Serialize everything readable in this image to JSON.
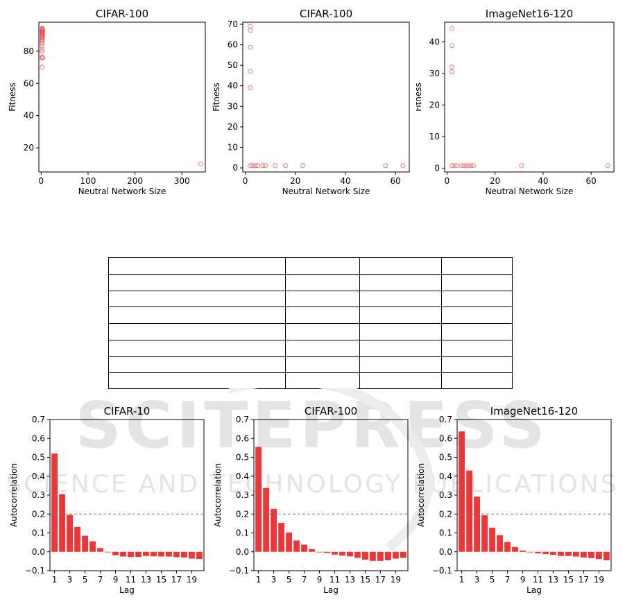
{
  "chart_data": [
    {
      "type": "scatter",
      "title": "CIFAR-100",
      "xlabel": "Neutral Network Size",
      "ylabel": "Fitness",
      "xlim": [
        -5,
        350
      ],
      "ylim": [
        5,
        98
      ],
      "xticks": [
        0,
        100,
        200,
        300
      ],
      "yticks": [
        20,
        40,
        60,
        80
      ],
      "marker_color": "#e8474a",
      "points": [
        [
          2,
          94.2
        ],
        [
          2,
          93.8
        ],
        [
          2,
          93.4
        ],
        [
          3,
          93.1
        ],
        [
          2,
          92.7
        ],
        [
          3,
          92.3
        ],
        [
          2,
          91.9
        ],
        [
          3,
          91.5
        ],
        [
          2,
          91.0
        ],
        [
          3,
          90.6
        ],
        [
          2,
          90.1
        ],
        [
          2,
          89.6
        ],
        [
          3,
          89.0
        ],
        [
          2,
          88.4
        ],
        [
          2,
          87.6
        ],
        [
          2,
          86.8
        ],
        [
          2,
          86.1
        ],
        [
          2,
          84.8
        ],
        [
          2,
          83.1
        ],
        [
          2,
          81.0
        ],
        [
          2,
          79.8
        ],
        [
          2,
          76.4
        ],
        [
          2,
          76.0
        ],
        [
          3,
          75.6
        ],
        [
          2,
          70.1
        ],
        [
          340,
          10.0
        ]
      ]
    },
    {
      "type": "scatter",
      "title": "CIFAR-100",
      "xlabel": "Neutral Network Size",
      "ylabel": "Fitness",
      "xlim": [
        -1,
        65.5
      ],
      "ylim": [
        -2,
        71
      ],
      "xticks": [
        0,
        20,
        40,
        60
      ],
      "yticks": [
        0,
        10,
        20,
        30,
        40,
        50,
        60,
        70
      ],
      "marker_color": "#e8474a",
      "points": [
        [
          2,
          69
        ],
        [
          2,
          67
        ],
        [
          2,
          58.8
        ],
        [
          2,
          47
        ],
        [
          2,
          39
        ],
        [
          2,
          1.1
        ],
        [
          3,
          1.1
        ],
        [
          4,
          1.1
        ],
        [
          5,
          1.1
        ],
        [
          7,
          1.1
        ],
        [
          8,
          1.1
        ],
        [
          12,
          1.1
        ],
        [
          16,
          1.1
        ],
        [
          23,
          1.1
        ],
        [
          56,
          1.1
        ],
        [
          63,
          1.1
        ]
      ]
    },
    {
      "type": "scatter",
      "title": "ImageNet16-120",
      "xlabel": "Neutral Network Size",
      "ylabel": "Fitness",
      "xlim": [
        -1,
        69.5
      ],
      "ylim": [
        -1.2,
        46.2
      ],
      "xticks": [
        0,
        20,
        40,
        60
      ],
      "yticks": [
        0,
        10,
        20,
        30,
        40
      ],
      "marker_color": "#e8474a",
      "points": [
        [
          2,
          44.2
        ],
        [
          2,
          38.8
        ],
        [
          2,
          32
        ],
        [
          2,
          30.5
        ],
        [
          2,
          0.8
        ],
        [
          3,
          0.8
        ],
        [
          4,
          0.8
        ],
        [
          6,
          0.8
        ],
        [
          7,
          0.8
        ],
        [
          8,
          0.8
        ],
        [
          9,
          0.8
        ],
        [
          10,
          0.8
        ],
        [
          11,
          0.8
        ],
        [
          31,
          0.8
        ],
        [
          67,
          0.8
        ]
      ]
    },
    {
      "type": "bar",
      "title": "CIFAR-10",
      "xlabel": "Lag",
      "ylabel": "Autocorrelation",
      "categories": [
        1,
        2,
        3,
        4,
        5,
        6,
        7,
        8,
        9,
        10,
        11,
        12,
        13,
        14,
        15,
        16,
        17,
        18,
        19,
        20
      ],
      "values": [
        0.52,
        0.305,
        0.195,
        0.132,
        0.085,
        0.055,
        0.02,
        -0.002,
        -0.018,
        -0.025,
        -0.028,
        -0.027,
        -0.022,
        -0.024,
        -0.025,
        -0.025,
        -0.028,
        -0.03,
        -0.036,
        -0.038
      ],
      "ylim": [
        -0.1,
        0.7
      ],
      "yticks": [
        -0.1,
        0.0,
        0.1,
        0.2,
        0.3,
        0.4,
        0.5,
        0.6,
        0.7
      ],
      "ytick_labels": [
        "−0.1",
        "0.0",
        "0.1",
        "0.2",
        "0.3",
        "0.4",
        "0.5",
        "0.6",
        "0.7"
      ],
      "xticks": [
        1,
        3,
        5,
        7,
        9,
        11,
        13,
        15,
        17,
        19
      ],
      "reference_line": 0.2,
      "bar_color": "#ee2a2a"
    },
    {
      "type": "bar",
      "title": "CIFAR-100",
      "xlabel": "Lag",
      "ylabel": "Autocorrelation",
      "categories": [
        1,
        2,
        3,
        4,
        5,
        6,
        7,
        8,
        9,
        10,
        11,
        12,
        13,
        14,
        15,
        16,
        17,
        18,
        19,
        20
      ],
      "values": [
        0.555,
        0.338,
        0.227,
        0.153,
        0.102,
        0.06,
        0.038,
        0.014,
        -0.003,
        -0.006,
        -0.015,
        -0.02,
        -0.024,
        -0.032,
        -0.042,
        -0.048,
        -0.048,
        -0.045,
        -0.036,
        -0.032
      ],
      "ylim": [
        -0.1,
        0.7
      ],
      "yticks": [
        -0.1,
        0.0,
        0.1,
        0.2,
        0.3,
        0.4,
        0.5,
        0.6,
        0.7
      ],
      "ytick_labels": [
        "−0.1",
        "0.0",
        "0.1",
        "0.2",
        "0.3",
        "0.4",
        "0.5",
        "0.6",
        "0.7"
      ],
      "xticks": [
        1,
        3,
        5,
        7,
        9,
        11,
        13,
        15,
        17,
        19
      ],
      "reference_line": 0.2,
      "bar_color": "#ee2a2a"
    },
    {
      "type": "bar",
      "title": "ImageNet16-120",
      "xlabel": "Lag",
      "ylabel": "Autocorrelation",
      "categories": [
        1,
        2,
        3,
        4,
        5,
        6,
        7,
        8,
        9,
        10,
        11,
        12,
        13,
        14,
        15,
        16,
        17,
        18,
        19,
        20
      ],
      "values": [
        0.637,
        0.43,
        0.292,
        0.193,
        0.127,
        0.088,
        0.052,
        0.026,
        0.007,
        -0.002,
        -0.008,
        -0.012,
        -0.016,
        -0.022,
        -0.022,
        -0.025,
        -0.03,
        -0.033,
        -0.038,
        -0.045
      ],
      "ylim": [
        -0.1,
        0.7
      ],
      "yticks": [
        -0.1,
        0.0,
        0.1,
        0.2,
        0.3,
        0.4,
        0.5,
        0.6,
        0.7
      ],
      "ytick_labels": [
        "−0.1",
        "0.0",
        "0.1",
        "0.2",
        "0.3",
        "0.4",
        "0.5",
        "0.6",
        "0.7"
      ],
      "xticks": [
        1,
        3,
        5,
        7,
        9,
        11,
        13,
        15,
        17,
        19
      ],
      "reference_line": 0.2,
      "bar_color": "#ee2a2a"
    }
  ],
  "table": {
    "rows": 8,
    "columns": 4
  },
  "watermark": {
    "line1": "SCITEPRESS",
    "line2": "SCIENCE AND TECHNOLOGY PUBLICATIONS",
    "color": "#d9d9d9"
  }
}
